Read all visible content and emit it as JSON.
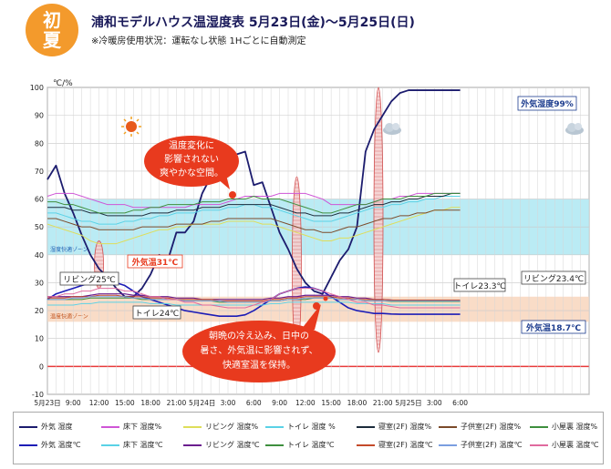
{
  "header": {
    "badge": "初夏",
    "title": "浦和モデルハウス温湿度表 5月23日(金)〜5月25日(日)",
    "subtitle": "※冷暖房使用状況：運転なし状態 1Hごとに自動測定"
  },
  "chart_data": {
    "type": "line",
    "ylabel": "℃/%",
    "ylim": [
      -10,
      100
    ],
    "yticks": [
      "-10",
      "0",
      "10",
      "20",
      "30",
      "40",
      "50",
      "60",
      "70",
      "80",
      "90",
      "100"
    ],
    "xlim": [
      0,
      63
    ],
    "xticks": [
      {
        "x": 0,
        "label": "5月23日"
      },
      {
        "x": 3,
        "label": "9:00"
      },
      {
        "x": 6,
        "label": "12:00"
      },
      {
        "x": 9,
        "label": "15:00"
      },
      {
        "x": 12,
        "label": "18:00"
      },
      {
        "x": 15,
        "label": "21:00"
      },
      {
        "x": 18,
        "label": "5月24日"
      },
      {
        "x": 21,
        "label": "3:00"
      },
      {
        "x": 24,
        "label": "6:00"
      },
      {
        "x": 27,
        "label": "9:00"
      },
      {
        "x": 30,
        "label": "12:00"
      },
      {
        "x": 33,
        "label": "15:00"
      },
      {
        "x": 36,
        "label": "18:00"
      },
      {
        "x": 39,
        "label": "21:00"
      },
      {
        "x": 42,
        "label": "5月25日"
      },
      {
        "x": 45,
        "label": "3:00"
      },
      {
        "x": 48,
        "label": "6:00"
      }
    ],
    "bands": [
      {
        "label": "湿度快適ゾーン",
        "from": 40,
        "to": 60,
        "color": "#aee8f2"
      },
      {
        "label": "温度快適ゾーン",
        "from": 16,
        "to": 25,
        "color": "#f8d6bd"
      }
    ],
    "series": [
      {
        "name": "外気 湿度",
        "color": "#1c1c6e",
        "width": 1.8,
        "values": [
          67,
          72,
          62,
          55,
          47,
          40,
          35,
          32,
          28,
          25,
          25,
          28,
          33,
          40,
          38,
          48,
          48,
          52,
          62,
          68,
          69,
          75,
          76,
          77,
          65,
          66,
          57,
          48,
          42,
          35,
          30,
          27,
          26,
          32,
          38,
          42,
          50,
          77,
          85,
          90,
          95,
          98,
          99,
          99,
          99,
          99,
          99,
          99,
          99
        ]
      },
      {
        "name": "床下 湿度%",
        "color": "#cf55d6",
        "width": 1,
        "values": [
          61,
          62,
          62,
          62,
          61,
          60,
          59,
          58,
          58,
          58,
          57,
          57,
          57,
          57,
          57,
          57,
          57,
          58,
          58,
          58,
          58,
          59,
          60,
          61,
          61,
          61,
          61,
          62,
          62,
          62,
          62,
          61,
          60,
          58,
          58,
          58,
          58,
          58,
          59,
          60,
          60,
          61,
          61,
          62,
          62,
          62,
          62,
          62,
          62
        ]
      },
      {
        "name": "リビング 湿度%",
        "color": "#dede5a",
        "width": 1,
        "values": [
          51,
          50,
          49,
          48,
          47,
          45,
          44,
          44,
          44,
          45,
          46,
          47,
          48,
          49,
          49,
          50,
          50,
          51,
          51,
          51,
          51,
          52,
          52,
          52,
          52,
          51,
          51,
          50,
          49,
          48,
          47,
          46,
          45,
          45,
          46,
          46,
          47,
          48,
          49,
          50,
          51,
          52,
          53,
          54,
          55,
          56,
          56,
          57,
          57
        ]
      },
      {
        "name": "トイレ 湿度 %",
        "color": "#5ad2e6",
        "width": 1,
        "values": [
          55,
          55,
          54,
          53,
          52,
          52,
          51,
          51,
          51,
          52,
          52,
          53,
          53,
          54,
          54,
          55,
          55,
          55,
          56,
          56,
          56,
          57,
          57,
          58,
          58,
          57,
          57,
          56,
          55,
          54,
          53,
          52,
          52,
          52,
          53,
          54,
          55,
          56,
          57,
          57,
          58,
          58,
          59,
          59,
          60,
          60,
          61,
          61,
          61
        ]
      },
      {
        "name": "寝室(2F) 湿度%",
        "color": "#1c2c3c",
        "width": 1,
        "values": [
          57,
          57,
          57,
          56,
          56,
          55,
          55,
          54,
          54,
          54,
          54,
          54,
          55,
          55,
          55,
          56,
          56,
          56,
          57,
          57,
          57,
          58,
          58,
          58,
          58,
          58,
          58,
          57,
          56,
          55,
          55,
          54,
          54,
          54,
          55,
          55,
          56,
          57,
          58,
          58,
          59,
          59,
          60,
          60,
          61,
          61,
          61,
          62,
          62
        ]
      },
      {
        "name": "子供室(2F) 湿度%",
        "color": "#7b4a2a",
        "width": 1,
        "values": [
          53,
          53,
          52,
          51,
          50,
          50,
          49,
          49,
          49,
          49,
          49,
          50,
          50,
          50,
          50,
          51,
          51,
          51,
          51,
          52,
          52,
          53,
          53,
          53,
          53,
          53,
          53,
          52,
          51,
          50,
          49,
          49,
          48,
          48,
          49,
          50,
          50,
          51,
          52,
          53,
          53,
          54,
          54,
          55,
          55,
          56,
          56,
          56,
          56
        ]
      },
      {
        "name": "小屋裏 湿度%",
        "color": "#3e8f3e",
        "width": 1,
        "values": [
          59,
          59,
          58,
          58,
          57,
          56,
          55,
          55,
          55,
          55,
          56,
          56,
          57,
          57,
          58,
          58,
          58,
          58,
          59,
          59,
          59,
          60,
          60,
          60,
          61,
          60,
          60,
          60,
          59,
          58,
          57,
          56,
          55,
          55,
          56,
          57,
          58,
          58,
          59,
          60,
          60,
          60,
          61,
          61,
          61,
          62,
          62,
          62,
          62
        ]
      },
      {
        "name": "外気 温度℃",
        "color": "#1c1cb6",
        "width": 1.6,
        "values": [
          24,
          26,
          27,
          28,
          29,
          30,
          30.5,
          31,
          30,
          29,
          27,
          25,
          24,
          23,
          22,
          21,
          20,
          19.5,
          19,
          18.5,
          18,
          18,
          18,
          18.5,
          20,
          22,
          24,
          26,
          27,
          28,
          28.5,
          28,
          27,
          25,
          23,
          21,
          20,
          19.5,
          19,
          19,
          18.8,
          18.7,
          18.7,
          18.7,
          18.7,
          18.7,
          18.7,
          18.7,
          18.7
        ]
      },
      {
        "name": "床下 温度℃",
        "color": "#5ad2e6",
        "width": 1,
        "values": [
          22,
          22,
          22,
          22,
          22.5,
          22.5,
          23,
          23,
          23,
          23,
          23,
          23,
          22.5,
          22.5,
          22.5,
          22,
          22,
          22,
          22,
          22,
          22,
          22,
          22,
          22,
          22,
          22,
          22.5,
          22.5,
          23,
          23,
          23,
          23,
          23,
          23,
          23,
          23,
          22.5,
          22.5,
          22.5,
          22.5,
          22,
          22,
          22,
          22,
          22,
          22,
          22,
          22,
          22
        ]
      },
      {
        "name": "リビング 温度℃",
        "color": "#6b1e8e",
        "width": 1.2,
        "values": [
          25,
          25,
          25,
          25,
          25,
          25.5,
          26,
          26,
          26,
          26,
          25.5,
          25.5,
          25,
          25,
          25,
          24.5,
          24.5,
          24.5,
          24,
          24,
          24,
          24,
          24,
          24,
          24,
          24,
          24.5,
          24.5,
          25,
          25,
          25.5,
          25.5,
          25.5,
          25.5,
          25,
          25,
          24.5,
          24.5,
          24,
          24,
          23.8,
          23.6,
          23.4,
          23.4,
          23.4,
          23.4,
          23.4,
          23.4,
          23.4
        ]
      },
      {
        "name": "トイレ 温度℃",
        "color": "#3e8f3e",
        "width": 1,
        "values": [
          24,
          24,
          24,
          24,
          24,
          24.5,
          24.5,
          24.5,
          24.5,
          24.5,
          24.5,
          24,
          24,
          24,
          24,
          24,
          23.5,
          23.5,
          23.5,
          23.5,
          23,
          23,
          23,
          23,
          23,
          23,
          23.5,
          23.5,
          24,
          24,
          24,
          24.5,
          24.5,
          24.5,
          24,
          24,
          24,
          23.5,
          23.5,
          23.5,
          23.3,
          23.3,
          23.3,
          23.3,
          23.3,
          23.3,
          23.3,
          23.3,
          23.3
        ]
      },
      {
        "name": "寝室(2F) 温度℃",
        "color": "#c44a2a",
        "width": 1,
        "values": [
          24.5,
          24.5,
          24.5,
          25,
          25,
          25,
          25.5,
          25.5,
          25.5,
          25,
          25,
          25,
          24.5,
          24.5,
          24.5,
          24,
          24,
          24,
          24,
          24,
          23.5,
          23.5,
          23.5,
          23.5,
          23.5,
          23.5,
          24,
          24,
          24.5,
          24.5,
          25,
          25,
          25,
          25,
          24.5,
          24.5,
          24,
          24,
          24,
          24,
          23.8,
          23.8,
          23.8,
          23.8,
          23.8,
          23.8,
          23.8,
          23.8,
          23.8
        ]
      },
      {
        "name": "子供室(2F) 温度℃",
        "color": "#7a9ee0",
        "width": 1,
        "values": [
          24,
          24,
          24,
          24.5,
          24.5,
          25,
          25,
          25,
          25,
          25,
          24.5,
          24.5,
          24,
          24,
          24,
          24,
          23.5,
          23.5,
          23.5,
          23.5,
          23.5,
          23,
          23,
          23,
          23,
          23,
          23.5,
          23.5,
          24,
          24,
          24.5,
          24.5,
          24.5,
          24.5,
          24,
          24,
          24,
          23.5,
          23.5,
          23.5,
          23.5,
          23.5,
          23.5,
          23.5,
          23.5,
          23.5,
          23.5,
          23.5,
          23.5
        ]
      },
      {
        "name": "小屋裏 温度℃",
        "color": "#e06a9e",
        "width": 1,
        "values": [
          25,
          25,
          26,
          26,
          27,
          27,
          28,
          28,
          28,
          27,
          27,
          26,
          25,
          25,
          24,
          24,
          23,
          23,
          22,
          22,
          21.5,
          21,
          21,
          21,
          22,
          23,
          24,
          26,
          27,
          28,
          28,
          28,
          27,
          26,
          25,
          24,
          23,
          23,
          22,
          22,
          21.5,
          21,
          21,
          21,
          21,
          21,
          21,
          21,
          21
        ]
      }
    ],
    "annotations": {
      "callout_top": "温度変化に 影響されない 爽やかな空間。",
      "callout_bottom": "朝晩の冷え込み、日中の 暑さ、外気温に影響されず、 快適室温を保持。",
      "label_outdoor_humidity": "外気湿度99%",
      "label_outdoor_temp_high": "外気温31℃",
      "label_living_start": "リビング25℃",
      "label_toilet_start": "トイレ24℃",
      "label_toilet_end": "トイレ23.3℃",
      "label_living_end": "リビング23.4℃",
      "label_outdoor_temp_end": "外気温18.7℃"
    }
  },
  "legend": [
    {
      "name": "外気 湿度",
      "color": "#1c1c6e"
    },
    {
      "name": "床下 湿度%",
      "color": "#cf55d6"
    },
    {
      "name": "リビング 湿度%",
      "color": "#dede5a"
    },
    {
      "name": "トイレ 湿度 %",
      "color": "#5ad2e6"
    },
    {
      "name": "寝室(2F) 湿度%",
      "color": "#1c2c3c"
    },
    {
      "name": "子供室(2F) 湿度%",
      "color": "#7b4a2a"
    },
    {
      "name": "小屋裏 湿度%",
      "color": "#3e8f3e"
    },
    {
      "name": "外気 温度℃",
      "color": "#1c1cb6"
    },
    {
      "name": "床下 温度℃",
      "color": "#5ad2e6"
    },
    {
      "name": "リビング 温度℃",
      "color": "#6b1e8e"
    },
    {
      "name": "トイレ 温度℃",
      "color": "#3e8f3e"
    },
    {
      "name": "寝室(2F) 温度℃",
      "color": "#c44a2a"
    },
    {
      "name": "子供室(2F) 温度℃",
      "color": "#7a9ee0"
    },
    {
      "name": "小屋裏 温度℃",
      "color": "#e06a9e"
    }
  ]
}
